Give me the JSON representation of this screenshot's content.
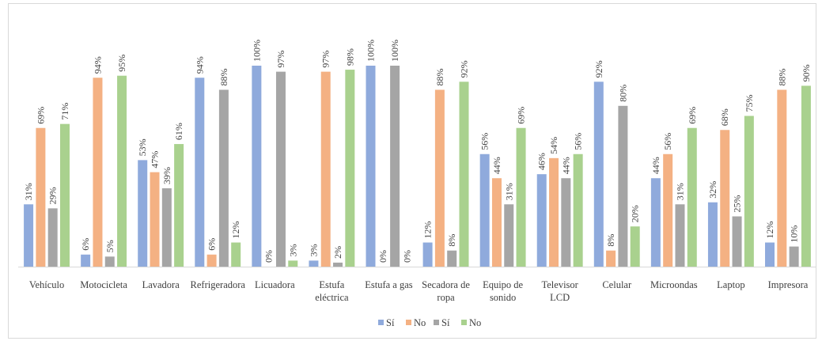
{
  "chart_data": {
    "type": "bar",
    "categories": [
      [
        "Vehículo"
      ],
      [
        "Motocicleta"
      ],
      [
        "Lavadora"
      ],
      [
        "Refrigeradora"
      ],
      [
        "Licuadora"
      ],
      [
        "Estufa",
        "eléctrica"
      ],
      [
        "Estufa a gas"
      ],
      [
        "Secadora de",
        "ropa"
      ],
      [
        "Equipo de",
        "sonido"
      ],
      [
        "Televisor",
        "LCD"
      ],
      [
        "Celular"
      ],
      [
        "Microondas"
      ],
      [
        "Laptop"
      ],
      [
        "Impresora"
      ]
    ],
    "series": [
      {
        "name": "Sí",
        "color": "#8faadc",
        "values": [
          31,
          6,
          53,
          94,
          100,
          3,
          100,
          12,
          56,
          46,
          92,
          44,
          32,
          12
        ]
      },
      {
        "name": "No",
        "color": "#f4b183",
        "values": [
          69,
          94,
          47,
          6,
          0,
          97,
          0,
          88,
          44,
          54,
          8,
          56,
          68,
          88
        ]
      },
      {
        "name": "Sí",
        "color": "#a5a5a5",
        "values": [
          29,
          5,
          39,
          88,
          97,
          2,
          100,
          8,
          31,
          44,
          80,
          31,
          25,
          10
        ]
      },
      {
        "name": "No",
        "color": "#a9d18e",
        "values": [
          71,
          95,
          61,
          12,
          3,
          98,
          0,
          92,
          69,
          56,
          20,
          69,
          75,
          90
        ]
      }
    ],
    "value_suffix": "%",
    "ylim": [
      0,
      100
    ],
    "legend": "bottom",
    "grid": false
  }
}
